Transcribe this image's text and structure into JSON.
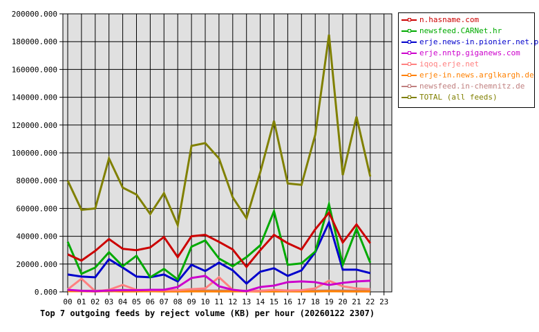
{
  "chart_data": {
    "type": "line",
    "title": "Top 7 outgoing feeds by reject volume (KB) per hour (20260122 2307)",
    "xlabel": "",
    "ylabel": "",
    "ylim": [
      0,
      200000
    ],
    "y_ticks": [
      "0.000",
      "20000.000",
      "40000.000",
      "60000.000",
      "80000.000",
      "100000.000",
      "120000.000",
      "140000.000",
      "160000.000",
      "180000.000",
      "200000.000"
    ],
    "x": [
      "00",
      "01",
      "02",
      "03",
      "04",
      "05",
      "06",
      "07",
      "08",
      "09",
      "10",
      "11",
      "12",
      "13",
      "14",
      "15",
      "16",
      "17",
      "18",
      "19",
      "20",
      "21",
      "22",
      "23"
    ],
    "grid": true,
    "legend_position": "right",
    "series": [
      {
        "name": "n.hasname.com",
        "color": "#cc0000",
        "values": [
          27000,
          22500,
          29500,
          38000,
          31000,
          30000,
          32000,
          39500,
          25000,
          40000,
          41000,
          36000,
          30500,
          18000,
          30000,
          41000,
          35000,
          30500,
          45000,
          57000,
          35500,
          48500,
          35000
        ]
      },
      {
        "name": "newsfeed.CARNet.hr",
        "color": "#00aa00",
        "values": [
          36000,
          13000,
          17500,
          28500,
          18500,
          26000,
          10500,
          16500,
          9000,
          32500,
          37000,
          24000,
          18500,
          25000,
          33500,
          58000,
          19500,
          20500,
          29000,
          63000,
          19500,
          45500,
          21000
        ]
      },
      {
        "name": "erje.news-in.pionier.net.pl",
        "color": "#0000cc",
        "values": [
          12500,
          11000,
          10500,
          23500,
          17500,
          11000,
          10500,
          12500,
          7500,
          19500,
          15000,
          21000,
          15500,
          6000,
          14500,
          17000,
          11500,
          15500,
          28500,
          50000,
          16000,
          16000,
          13500
        ]
      },
      {
        "name": "erje.nntp.giganews.com",
        "color": "#cc00cc",
        "values": [
          1500,
          800,
          500,
          1000,
          1200,
          1200,
          1500,
          1500,
          3500,
          10000,
          11500,
          4000,
          1500,
          500,
          3500,
          4500,
          7000,
          7500,
          7000,
          5000,
          6500,
          7500,
          8000
        ]
      },
      {
        "name": "iqoq.erje.net",
        "color": "#ff8080",
        "values": [
          1800,
          9500,
          500,
          1500,
          5000,
          1500,
          1200,
          1200,
          1200,
          2000,
          2500,
          10500,
          1500,
          500,
          800,
          1500,
          1000,
          1200,
          2500,
          8000,
          4000,
          2500,
          2000
        ]
      },
      {
        "name": "erje-in.news.arglkargh.de",
        "color": "#ff8000",
        "values": [
          500,
          500,
          300,
          600,
          300,
          400,
          500,
          300,
          300,
          400,
          400,
          300,
          400,
          400,
          300,
          300,
          400,
          300,
          300,
          500,
          400,
          300,
          300
        ]
      },
      {
        "name": "newsfeed.in-chemnitz.de",
        "color": "#c08080",
        "values": [
          800,
          800,
          800,
          1000,
          1500,
          1200,
          900,
          900,
          800,
          900,
          1000,
          1000,
          900,
          800,
          800,
          900,
          900,
          800,
          900,
          1000,
          1000,
          900,
          900
        ]
      },
      {
        "name": "TOTAL (all feeds)",
        "color": "#808000",
        "values": [
          80000,
          59000,
          60000,
          96000,
          75000,
          70000,
          56000,
          71000,
          48000,
          105000,
          107000,
          96000,
          68000,
          53000,
          86000,
          123000,
          78000,
          77000,
          113000,
          185000,
          84000,
          126000,
          83000
        ]
      }
    ]
  },
  "legend": {
    "items": [
      {
        "label": "n.hasname.com",
        "color": "#cc0000"
      },
      {
        "label": "newsfeed.CARNet.hr",
        "color": "#00aa00"
      },
      {
        "label": "erje.news-in.pionier.net.pl",
        "color": "#0000cc"
      },
      {
        "label": "erje.nntp.giganews.com",
        "color": "#cc00cc"
      },
      {
        "label": "iqoq.erje.net",
        "color": "#ff8080"
      },
      {
        "label": "erje-in.news.arglkargh.de",
        "color": "#ff8000"
      },
      {
        "label": "newsfeed.in-chemnitz.de",
        "color": "#c08080"
      },
      {
        "label": "TOTAL (all feeds)",
        "color": "#808000"
      }
    ]
  },
  "caption": "Top 7 outgoing feeds by reject volume (KB) per hour (20260122 2307)"
}
